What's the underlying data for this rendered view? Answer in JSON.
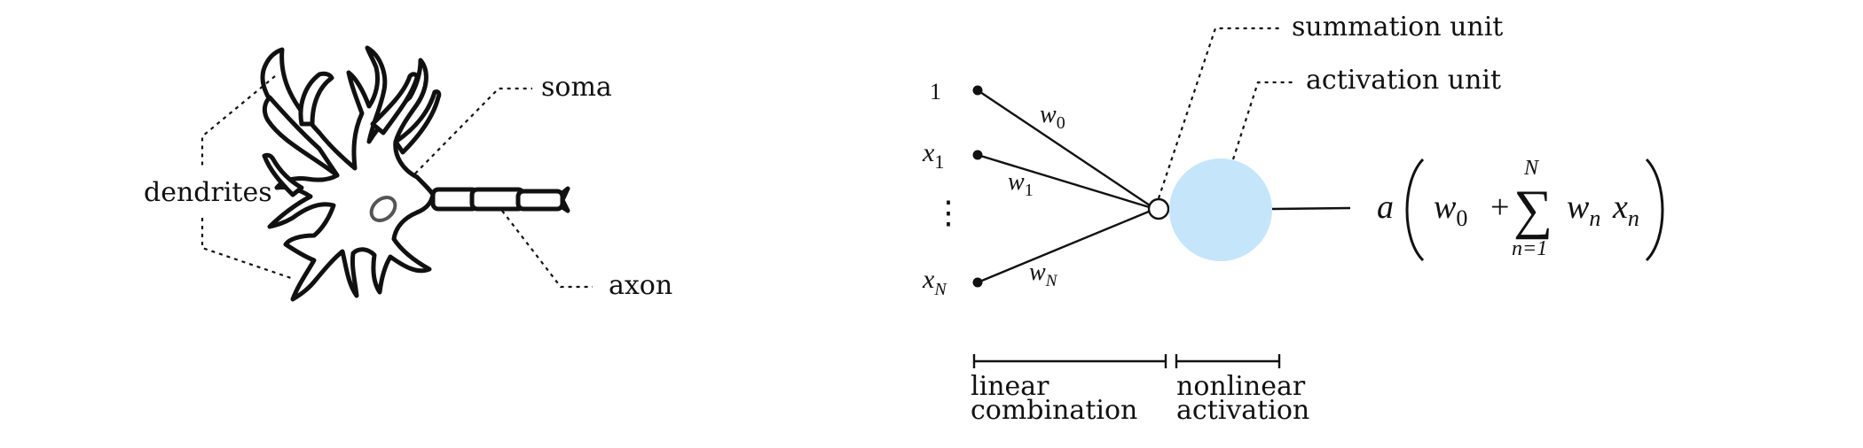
{
  "neuron": {
    "labels": {
      "dendrites": "dendrites",
      "soma": "soma",
      "axon": "axon"
    }
  },
  "perceptron": {
    "inputs": {
      "one": "1",
      "x1_base": "x",
      "x1_sub": "1",
      "dots": "⋮",
      "xN_base": "x",
      "xN_sub": "N"
    },
    "weights": {
      "w0_base": "w",
      "w0_sub": "0",
      "w1_base": "w",
      "w1_sub": "1",
      "wN_base": "w",
      "wN_sub": "N"
    },
    "units": {
      "summation": "summation unit",
      "activation": "activation unit"
    },
    "activation_color": "#c5e6fa",
    "formula": {
      "a": "a",
      "w": "w",
      "w0_sub": "0",
      "plus": "+",
      "sigma": "∑",
      "upper": "N",
      "lower": "n=1",
      "wn": "w",
      "wn_sub": "n",
      "xn": "x",
      "xn_sub": "n"
    },
    "brackets": {
      "linear_line1": "linear",
      "linear_line2": "combination",
      "nonlinear_line1": "nonlinear",
      "nonlinear_line2": "activation"
    }
  }
}
